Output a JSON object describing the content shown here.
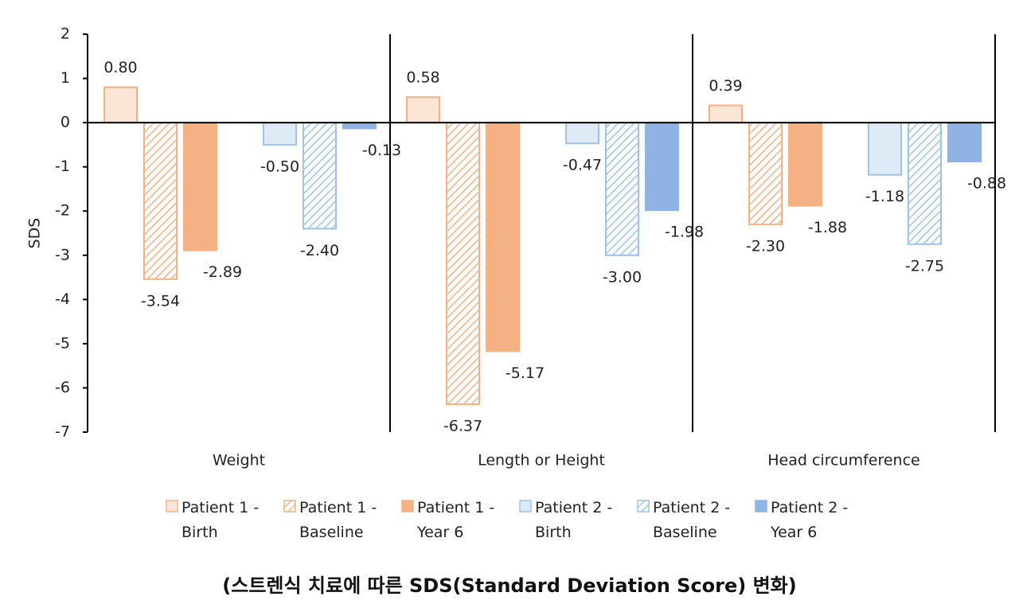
{
  "chart_data": {
    "type": "bar",
    "y_label": "SDS",
    "caption": "(스트렌식 치료에 따른 SDS(Standard Deviation Score) 변화)",
    "categories": [
      "Weight",
      "Length or Height",
      "Head circumference"
    ],
    "ylim": [
      -7,
      2
    ],
    "yticks": [
      -7,
      -6,
      -5,
      -4,
      -3,
      -2,
      -1,
      0,
      1,
      2
    ],
    "legend": "bottom",
    "series": [
      {
        "name": "Patient 1 - Birth",
        "color": "#fbe5d6",
        "stroke": "#f4b183",
        "hatch": false,
        "values": [
          0.8,
          0.58,
          0.39
        ],
        "value_labels": [
          "0.80",
          "0.58",
          "0.39"
        ]
      },
      {
        "name": "Patient 1 - Baseline",
        "color": "#f4b183",
        "stroke": "#f4b183",
        "hatch": true,
        "values": [
          -3.54,
          -6.37,
          -2.3
        ],
        "value_labels": [
          "-3.54",
          "-6.37",
          "-2.30"
        ]
      },
      {
        "name": "Patient 1 - Year 6",
        "color": "#f4b183",
        "stroke": "#f4b183",
        "hatch": false,
        "values": [
          -2.89,
          -5.17,
          -1.88
        ],
        "value_labels": [
          "-2.89",
          "-5.17",
          "-1.88"
        ]
      },
      {
        "name": "Patient 2 - Birth",
        "color": "#deebf7",
        "stroke": "#9dc3e6",
        "hatch": false,
        "values": [
          -0.5,
          -0.47,
          -1.18
        ],
        "value_labels": [
          "-0.50",
          "-0.47",
          "-1.18"
        ]
      },
      {
        "name": "Patient 2 - Baseline",
        "color": "#9dc3e6",
        "stroke": "#9dc3e6",
        "hatch": true,
        "values": [
          -2.4,
          -3.0,
          -2.75
        ],
        "value_labels": [
          "-2.40",
          "-3.00",
          "-2.75"
        ]
      },
      {
        "name": "Patient 2 - Year 6",
        "color": "#8fb4e3",
        "stroke": "#8fb4e3",
        "hatch": false,
        "values": [
          -0.13,
          -1.98,
          -0.88
        ],
        "value_labels": [
          "-0.13",
          "-1.98",
          "-0.88"
        ]
      }
    ]
  }
}
